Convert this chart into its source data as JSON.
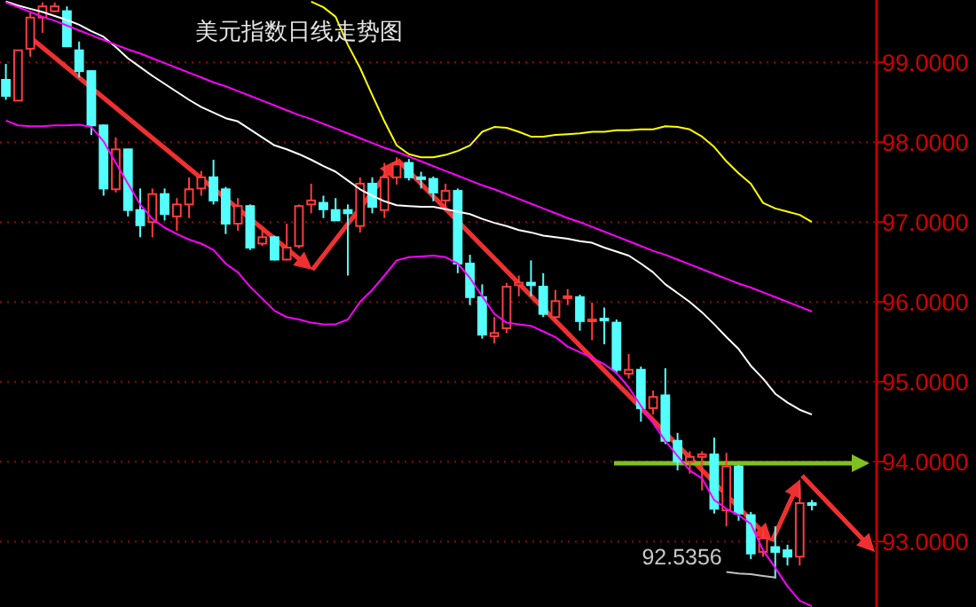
{
  "chart_data": {
    "type": "candlestick",
    "title": "美元指数日线走势图",
    "categories": [
      null,
      null,
      null,
      null,
      null,
      null,
      null,
      null,
      null,
      null,
      null,
      null,
      null,
      null,
      null,
      null,
      null,
      null,
      null,
      null,
      null,
      null,
      null,
      null,
      null,
      null,
      null,
      null,
      null,
      null,
      null,
      null,
      null,
      null,
      null,
      null,
      null,
      null,
      null,
      null,
      null,
      null,
      null,
      null,
      null,
      null,
      null,
      null,
      null,
      null,
      null,
      null,
      null,
      null,
      null,
      null,
      null,
      null,
      null,
      null,
      null,
      null,
      null,
      null,
      null,
      null,
      null
    ],
    "ohlc": [
      [
        98.78,
        98.98,
        98.53,
        98.58
      ],
      [
        98.52,
        99.15,
        98.52,
        99.15
      ],
      [
        99.17,
        99.64,
        99.07,
        99.56
      ],
      [
        99.56,
        99.75,
        99.37,
        99.7
      ],
      [
        99.64,
        99.75,
        99.63,
        99.7
      ],
      [
        99.64,
        99.7,
        99.19,
        99.2
      ],
      [
        99.15,
        99.26,
        98.81,
        98.89
      ],
      [
        98.89,
        98.9,
        98.09,
        98.21
      ],
      [
        98.21,
        98.22,
        97.33,
        97.42
      ],
      [
        97.41,
        98.06,
        97.37,
        97.91
      ],
      [
        97.91,
        97.91,
        97.07,
        97.15
      ],
      [
        97.15,
        97.42,
        96.81,
        96.96
      ],
      [
        97.0,
        97.42,
        96.81,
        97.35
      ],
      [
        97.35,
        97.42,
        97.02,
        97.1
      ],
      [
        97.07,
        97.3,
        96.89,
        97.22
      ],
      [
        97.22,
        97.56,
        97.05,
        97.41
      ],
      [
        97.42,
        97.64,
        97.33,
        97.56
      ],
      [
        97.56,
        97.78,
        97.22,
        97.27
      ],
      [
        97.41,
        97.44,
        96.85,
        96.98
      ],
      [
        96.98,
        97.3,
        96.89,
        97.2
      ],
      [
        97.2,
        97.22,
        96.65,
        96.68
      ],
      [
        96.73,
        96.89,
        96.7,
        96.81
      ],
      [
        96.81,
        96.83,
        96.52,
        96.53
      ],
      [
        96.53,
        96.98,
        96.52,
        96.68
      ],
      [
        96.7,
        97.22,
        96.67,
        97.2
      ],
      [
        97.22,
        97.48,
        97.11,
        97.27
      ],
      [
        97.24,
        97.33,
        97.05,
        97.16
      ],
      [
        97.15,
        97.3,
        97.02,
        97.02
      ],
      [
        97.15,
        97.22,
        96.33,
        97.11
      ],
      [
        96.95,
        97.56,
        96.87,
        97.48
      ],
      [
        97.48,
        97.56,
        97.11,
        97.19
      ],
      [
        97.15,
        97.74,
        97.05,
        97.56
      ],
      [
        97.56,
        97.81,
        97.47,
        97.72
      ],
      [
        97.74,
        97.79,
        97.52,
        97.56
      ],
      [
        97.56,
        97.63,
        97.42,
        97.55
      ],
      [
        97.54,
        97.57,
        97.26,
        97.37
      ],
      [
        97.27,
        97.48,
        97.15,
        97.39
      ],
      [
        97.39,
        97.42,
        96.36,
        96.48
      ],
      [
        96.48,
        96.59,
        95.96,
        96.06
      ],
      [
        96.06,
        96.22,
        95.54,
        95.59
      ],
      [
        95.57,
        95.81,
        95.48,
        95.61
      ],
      [
        95.67,
        96.24,
        95.61,
        96.19
      ],
      [
        96.21,
        96.33,
        96.07,
        96.24
      ],
      [
        96.24,
        96.52,
        96.07,
        96.21
      ],
      [
        96.19,
        96.36,
        95.81,
        95.85
      ],
      [
        95.81,
        96.15,
        95.74,
        96.01
      ],
      [
        96.05,
        96.16,
        95.96,
        96.07
      ],
      [
        96.06,
        96.09,
        95.64,
        95.76
      ],
      [
        95.76,
        95.99,
        95.52,
        95.78
      ],
      [
        95.79,
        95.93,
        95.47,
        95.77
      ],
      [
        95.74,
        95.78,
        95.1,
        95.15
      ],
      [
        95.1,
        95.35,
        95.04,
        95.15
      ],
      [
        95.15,
        95.19,
        94.5,
        94.67
      ],
      [
        94.67,
        94.89,
        94.59,
        94.81
      ],
      [
        94.83,
        95.17,
        94.22,
        94.26
      ],
      [
        94.26,
        94.36,
        93.89,
        94.0
      ],
      [
        94.0,
        94.13,
        93.85,
        94.06
      ],
      [
        94.06,
        94.13,
        93.64,
        94.09
      ],
      [
        94.09,
        94.3,
        93.35,
        93.41
      ],
      [
        93.39,
        94.11,
        93.19,
        93.94
      ],
      [
        93.94,
        93.96,
        93.26,
        93.35
      ],
      [
        93.33,
        93.37,
        92.78,
        92.85
      ],
      [
        92.87,
        93.15,
        92.81,
        93.04
      ],
      [
        92.93,
        93.19,
        92.5356,
        92.87
      ],
      [
        92.89,
        92.96,
        92.7,
        92.81
      ],
      [
        92.81,
        93.7,
        92.7,
        93.48
      ],
      [
        93.48,
        93.52,
        93.39,
        93.47
      ]
    ],
    "series": [
      {
        "type": "line",
        "color": "#ffff00",
        "values": [
          null,
          null,
          null,
          null,
          null,
          null,
          null,
          null,
          null,
          null,
          null,
          null,
          null,
          null,
          null,
          null,
          null,
          null,
          null,
          null,
          null,
          null,
          null,
          null,
          null,
          99.76,
          99.69,
          99.57,
          99.22,
          98.93,
          98.59,
          98.26,
          97.96,
          97.85,
          97.81,
          97.81,
          97.84,
          97.89,
          97.96,
          98.13,
          98.19,
          98.18,
          98.13,
          98.07,
          98.07,
          98.09,
          98.1,
          98.11,
          98.13,
          98.13,
          98.15,
          98.15,
          98.16,
          98.16,
          98.2,
          98.19,
          98.16,
          98.07,
          97.94,
          97.76,
          97.61,
          97.48,
          97.24,
          97.17,
          97.13,
          97.09,
          97.0
        ]
      },
      {
        "type": "line",
        "color": "#ffffff",
        "values": [
          99.76,
          99.71,
          99.67,
          99.63,
          99.58,
          99.53,
          99.47,
          99.39,
          99.32,
          99.19,
          99.05,
          98.94,
          98.83,
          98.73,
          98.63,
          98.53,
          98.44,
          98.37,
          98.3,
          98.26,
          98.16,
          98.06,
          97.96,
          97.91,
          97.85,
          97.78,
          97.7,
          97.63,
          97.52,
          97.41,
          97.33,
          97.26,
          97.21,
          97.2,
          97.19,
          97.19,
          97.16,
          97.13,
          97.1,
          97.04,
          96.99,
          96.95,
          96.9,
          96.87,
          96.83,
          96.81,
          96.79,
          96.76,
          96.74,
          96.68,
          96.63,
          96.58,
          96.48,
          96.37,
          96.22,
          96.11,
          96.0,
          95.87,
          95.72,
          95.56,
          95.41,
          95.2,
          95.04,
          94.85,
          94.74,
          94.65,
          94.59
        ]
      },
      {
        "type": "line",
        "color": "#ff00ff",
        "values": [
          98.27,
          98.21,
          98.2,
          98.2,
          98.21,
          98.21,
          98.22,
          98.19,
          98.01,
          97.74,
          97.48,
          97.22,
          97.04,
          96.93,
          96.85,
          96.78,
          96.73,
          96.65,
          96.48,
          96.37,
          96.19,
          96.04,
          95.89,
          95.81,
          95.78,
          95.74,
          95.72,
          95.72,
          95.78,
          96.0,
          96.15,
          96.33,
          96.52,
          96.56,
          96.57,
          96.58,
          96.56,
          96.48,
          96.3,
          96.07,
          95.85,
          95.74,
          95.72,
          95.7,
          95.63,
          95.56,
          95.44,
          95.37,
          95.3,
          95.22,
          95.11,
          94.93,
          94.7,
          94.48,
          94.26,
          94.07,
          93.89,
          93.79,
          93.52,
          93.41,
          93.33,
          93.22,
          92.89,
          92.67,
          92.44,
          92.26,
          92.19
        ]
      },
      {
        "type": "line",
        "color": "#ff00ff",
        "values": [
          99.75,
          99.69,
          99.63,
          99.57,
          99.52,
          99.46,
          99.4,
          99.34,
          99.28,
          99.22,
          99.16,
          99.11,
          99.05,
          98.99,
          98.93,
          98.87,
          98.81,
          98.75,
          98.7,
          98.64,
          98.58,
          98.52,
          98.46,
          98.4,
          98.34,
          98.29,
          98.23,
          98.17,
          98.11,
          98.05,
          97.99,
          97.93,
          97.88,
          97.82,
          97.76,
          97.7,
          97.64,
          97.58,
          97.52,
          97.46,
          97.41,
          97.35,
          97.29,
          97.23,
          97.17,
          97.11,
          97.05,
          97.0,
          96.94,
          96.88,
          96.82,
          96.76,
          96.7,
          96.64,
          96.59,
          96.53,
          96.47,
          96.41,
          96.35,
          96.29,
          96.23,
          96.18,
          96.12,
          96.06,
          96.0,
          95.94,
          95.88
        ]
      },
      {
        "type": "line",
        "color": "#c0c0c0",
        "values": [
          null,
          null,
          null,
          null,
          null,
          null,
          null,
          null,
          null,
          null,
          null,
          null,
          null,
          null,
          null,
          null,
          null,
          null,
          null,
          null,
          null,
          null,
          null,
          null,
          null,
          null,
          null,
          null,
          null,
          null,
          null,
          null,
          null,
          null,
          null,
          null,
          null,
          null,
          null,
          null,
          null,
          null,
          null,
          null,
          null,
          null,
          null,
          null,
          null,
          null,
          null,
          null,
          null,
          null,
          null,
          null,
          null,
          null,
          null,
          92.62,
          92.6,
          92.59,
          92.57,
          92.55,
          null,
          null,
          null
        ]
      }
    ],
    "ylim": [
      92.18,
      99.78
    ],
    "yticks": [
      {
        "value": 93,
        "label": "93.0000"
      },
      {
        "value": 94,
        "label": "94.0000"
      },
      {
        "value": 95,
        "label": "95.0000"
      },
      {
        "value": 96,
        "label": "96.0000"
      },
      {
        "value": 97,
        "label": "97.0000"
      },
      {
        "value": 98,
        "label": "98.0000"
      },
      {
        "value": 99,
        "label": "99.0000"
      }
    ],
    "grid": "y",
    "tick_labels": "y",
    "annotations": [
      "92.5356"
    ]
  }
}
